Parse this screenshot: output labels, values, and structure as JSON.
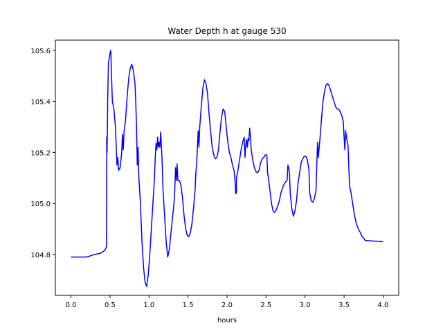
{
  "chart_data": {
    "type": "line",
    "title": "Water Depth h at gauge 530",
    "xlabel": "hours",
    "ylabel": "",
    "xlim": [
      -0.2,
      4.2
    ],
    "ylim": [
      104.64,
      105.64
    ],
    "x_ticks": [
      0.0,
      0.5,
      1.0,
      1.5,
      2.0,
      2.5,
      3.0,
      3.5,
      4.0
    ],
    "x_tick_labels": [
      "0.0",
      "0.5",
      "1.0",
      "1.5",
      "2.0",
      "2.5",
      "3.0",
      "3.5",
      "4.0"
    ],
    "y_ticks": [
      104.8,
      105.0,
      105.2,
      105.4,
      105.6
    ],
    "y_tick_labels": [
      "104.8",
      "105.0",
      "105.2",
      "105.4",
      "105.6"
    ],
    "grid": false,
    "color": "#0000ff",
    "series": [
      {
        "points": [
          [
            0.0,
            104.79
          ],
          [
            0.1,
            104.79
          ],
          [
            0.2,
            104.79
          ],
          [
            0.3,
            104.8
          ],
          [
            0.38,
            104.805
          ],
          [
            0.43,
            104.815
          ],
          [
            0.455,
            104.83
          ],
          [
            0.458,
            105.26
          ],
          [
            0.462,
            105.2
          ],
          [
            0.467,
            105.3
          ],
          [
            0.47,
            105.4
          ],
          [
            0.48,
            105.55
          ],
          [
            0.5,
            105.59
          ],
          [
            0.51,
            105.6
          ],
          [
            0.52,
            105.5
          ],
          [
            0.53,
            105.4
          ],
          [
            0.55,
            105.37
          ],
          [
            0.57,
            105.3
          ],
          [
            0.58,
            105.22
          ],
          [
            0.59,
            105.15
          ],
          [
            0.6,
            105.18
          ],
          [
            0.61,
            105.13
          ],
          [
            0.63,
            105.14
          ],
          [
            0.65,
            105.2
          ],
          [
            0.66,
            105.27
          ],
          [
            0.67,
            105.21
          ],
          [
            0.68,
            105.28
          ],
          [
            0.7,
            105.33
          ],
          [
            0.72,
            105.42
          ],
          [
            0.74,
            105.49
          ],
          [
            0.76,
            105.53
          ],
          [
            0.78,
            105.545
          ],
          [
            0.8,
            105.52
          ],
          [
            0.82,
            105.47
          ],
          [
            0.83,
            105.4
          ],
          [
            0.84,
            105.3
          ],
          [
            0.85,
            105.15
          ],
          [
            0.86,
            105.22
          ],
          [
            0.87,
            105.1
          ],
          [
            0.89,
            105.0
          ],
          [
            0.91,
            104.85
          ],
          [
            0.93,
            104.75
          ],
          [
            0.95,
            104.69
          ],
          [
            0.97,
            104.675
          ],
          [
            0.99,
            104.72
          ],
          [
            1.01,
            104.8
          ],
          [
            1.03,
            104.9
          ],
          [
            1.05,
            105.0
          ],
          [
            1.07,
            105.1
          ],
          [
            1.08,
            105.18
          ],
          [
            1.09,
            105.235
          ],
          [
            1.1,
            105.21
          ],
          [
            1.11,
            105.26
          ],
          [
            1.12,
            105.22
          ],
          [
            1.13,
            105.24
          ],
          [
            1.14,
            105.22
          ],
          [
            1.15,
            105.28
          ],
          [
            1.16,
            105.22
          ],
          [
            1.17,
            105.15
          ],
          [
            1.18,
            105.05
          ],
          [
            1.2,
            104.95
          ],
          [
            1.22,
            104.85
          ],
          [
            1.24,
            104.79
          ],
          [
            1.26,
            104.82
          ],
          [
            1.28,
            104.88
          ],
          [
            1.3,
            104.94
          ],
          [
            1.32,
            105.0
          ],
          [
            1.33,
            105.05
          ],
          [
            1.34,
            105.14
          ],
          [
            1.35,
            105.09
          ],
          [
            1.36,
            105.155
          ],
          [
            1.37,
            105.09
          ],
          [
            1.39,
            105.09
          ],
          [
            1.41,
            105.07
          ],
          [
            1.43,
            105.02
          ],
          [
            1.45,
            104.95
          ],
          [
            1.47,
            104.9
          ],
          [
            1.49,
            104.875
          ],
          [
            1.51,
            104.87
          ],
          [
            1.53,
            104.885
          ],
          [
            1.55,
            104.92
          ],
          [
            1.57,
            104.98
          ],
          [
            1.59,
            105.05
          ],
          [
            1.6,
            105.12
          ],
          [
            1.61,
            105.15
          ],
          [
            1.62,
            105.22
          ],
          [
            1.63,
            105.285
          ],
          [
            1.64,
            105.22
          ],
          [
            1.65,
            105.3
          ],
          [
            1.67,
            105.38
          ],
          [
            1.69,
            105.45
          ],
          [
            1.71,
            105.485
          ],
          [
            1.73,
            105.47
          ],
          [
            1.75,
            105.43
          ],
          [
            1.77,
            105.35
          ],
          [
            1.79,
            105.28
          ],
          [
            1.81,
            105.22
          ],
          [
            1.83,
            105.19
          ],
          [
            1.85,
            105.175
          ],
          [
            1.87,
            105.18
          ],
          [
            1.89,
            105.21
          ],
          [
            1.91,
            105.28
          ],
          [
            1.93,
            105.34
          ],
          [
            1.95,
            105.37
          ],
          [
            1.97,
            105.36
          ],
          [
            1.99,
            105.3
          ],
          [
            2.01,
            105.24
          ],
          [
            2.03,
            105.2
          ],
          [
            2.05,
            105.18
          ],
          [
            2.07,
            105.15
          ],
          [
            2.09,
            105.13
          ],
          [
            2.1,
            105.1
          ],
          [
            2.11,
            105.04
          ],
          [
            2.12,
            105.04
          ],
          [
            2.12,
            105.1
          ],
          [
            2.14,
            105.13
          ],
          [
            2.16,
            105.17
          ],
          [
            2.18,
            105.21
          ],
          [
            2.2,
            105.24
          ],
          [
            2.22,
            105.26
          ],
          [
            2.23,
            105.18
          ],
          [
            2.24,
            105.23
          ],
          [
            2.25,
            105.25
          ],
          [
            2.26,
            105.22
          ],
          [
            2.27,
            105.255
          ],
          [
            2.28,
            105.245
          ],
          [
            2.29,
            105.295
          ],
          [
            2.3,
            105.26
          ],
          [
            2.31,
            105.21
          ],
          [
            2.33,
            105.17
          ],
          [
            2.35,
            105.14
          ],
          [
            2.37,
            105.125
          ],
          [
            2.39,
            105.12
          ],
          [
            2.41,
            105.13
          ],
          [
            2.43,
            105.16
          ],
          [
            2.45,
            105.175
          ],
          [
            2.47,
            105.18
          ],
          [
            2.49,
            105.19
          ],
          [
            2.51,
            105.19
          ],
          [
            2.52,
            105.12
          ],
          [
            2.53,
            105.1
          ],
          [
            2.55,
            105.05
          ],
          [
            2.57,
            105.0
          ],
          [
            2.59,
            104.97
          ],
          [
            2.61,
            104.965
          ],
          [
            2.63,
            104.975
          ],
          [
            2.65,
            104.99
          ],
          [
            2.67,
            105.01
          ],
          [
            2.69,
            105.04
          ],
          [
            2.71,
            105.06
          ],
          [
            2.73,
            105.075
          ],
          [
            2.75,
            105.085
          ],
          [
            2.77,
            105.09
          ],
          [
            2.78,
            105.15
          ],
          [
            2.79,
            105.14
          ],
          [
            2.8,
            105.12
          ],
          [
            2.81,
            105.04
          ],
          [
            2.83,
            104.98
          ],
          [
            2.85,
            104.95
          ],
          [
            2.87,
            104.97
          ],
          [
            2.89,
            105.01
          ],
          [
            2.91,
            105.08
          ],
          [
            2.93,
            105.12
          ],
          [
            2.95,
            105.16
          ],
          [
            2.97,
            105.175
          ],
          [
            2.99,
            105.185
          ],
          [
            3.01,
            105.185
          ],
          [
            3.03,
            105.17
          ],
          [
            3.05,
            105.13
          ],
          [
            3.06,
            105.04
          ],
          [
            3.08,
            105.01
          ],
          [
            3.1,
            105.005
          ],
          [
            3.12,
            105.02
          ],
          [
            3.14,
            105.05
          ],
          [
            3.15,
            105.15
          ],
          [
            3.16,
            105.24
          ],
          [
            3.17,
            105.18
          ],
          [
            3.19,
            105.25
          ],
          [
            3.21,
            105.33
          ],
          [
            3.23,
            105.4
          ],
          [
            3.25,
            105.44
          ],
          [
            3.27,
            105.465
          ],
          [
            3.29,
            105.47
          ],
          [
            3.31,
            105.46
          ],
          [
            3.33,
            105.44
          ],
          [
            3.35,
            105.42
          ],
          [
            3.37,
            105.4
          ],
          [
            3.39,
            105.38
          ],
          [
            3.41,
            105.37
          ],
          [
            3.43,
            105.37
          ],
          [
            3.45,
            105.36
          ],
          [
            3.47,
            105.345
          ],
          [
            3.49,
            105.32
          ],
          [
            3.5,
            105.26
          ],
          [
            3.51,
            105.21
          ],
          [
            3.52,
            105.285
          ],
          [
            3.53,
            105.26
          ],
          [
            3.55,
            105.23
          ],
          [
            3.56,
            105.15
          ],
          [
            3.57,
            105.07
          ],
          [
            3.59,
            105.04
          ],
          [
            3.61,
            105.0
          ],
          [
            3.63,
            104.96
          ],
          [
            3.65,
            104.93
          ],
          [
            3.67,
            104.91
          ],
          [
            3.69,
            104.895
          ],
          [
            3.71,
            104.885
          ],
          [
            3.73,
            104.87
          ],
          [
            3.75,
            104.865
          ],
          [
            3.77,
            104.855
          ],
          [
            4.0,
            104.85
          ]
        ]
      }
    ]
  }
}
